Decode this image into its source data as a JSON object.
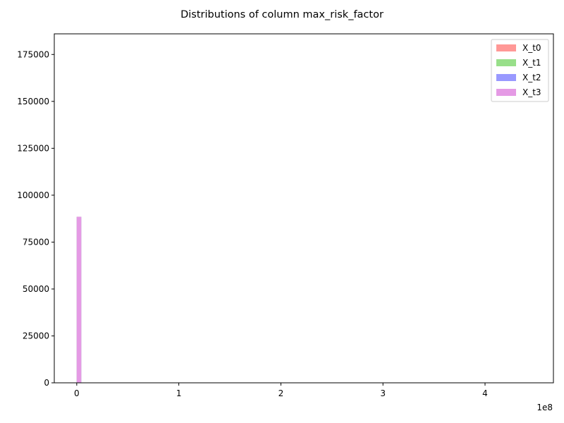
{
  "chart_data": {
    "type": "bar",
    "chart_kind": "histogram",
    "title": "Distributions of column max_risk_factor",
    "xlabel": "",
    "ylabel": "",
    "x_offset_label": "1e8",
    "xlim": [
      -0.22,
      4.67
    ],
    "ylim": [
      0,
      186000
    ],
    "xticks": [
      0,
      1,
      2,
      3,
      4
    ],
    "yticks": [
      0,
      25000,
      50000,
      75000,
      100000,
      125000,
      150000,
      175000
    ],
    "ytick_labels": [
      "0",
      "25000",
      "50000",
      "75000",
      "100000",
      "125000",
      "150000",
      "175000"
    ],
    "grid": false,
    "legend_position": "top-right",
    "series": [
      {
        "name": "X_t0",
        "color": "#ff9896",
        "bins": [
          {
            "x0": 0.0,
            "x1": 0.044,
            "count": 88500
          }
        ]
      },
      {
        "name": "X_t1",
        "color": "#98df8a",
        "bins": [
          {
            "x0": 0.0,
            "x1": 0.044,
            "count": 88500
          }
        ]
      },
      {
        "name": "X_t2",
        "color": "#9999ff",
        "bins": [
          {
            "x0": 0.0,
            "x1": 0.044,
            "count": 88500
          }
        ]
      },
      {
        "name": "X_t3",
        "color": "#e59ae5",
        "bins": [
          {
            "x0": 0.0,
            "x1": 0.044,
            "count": 88500
          }
        ]
      }
    ]
  }
}
